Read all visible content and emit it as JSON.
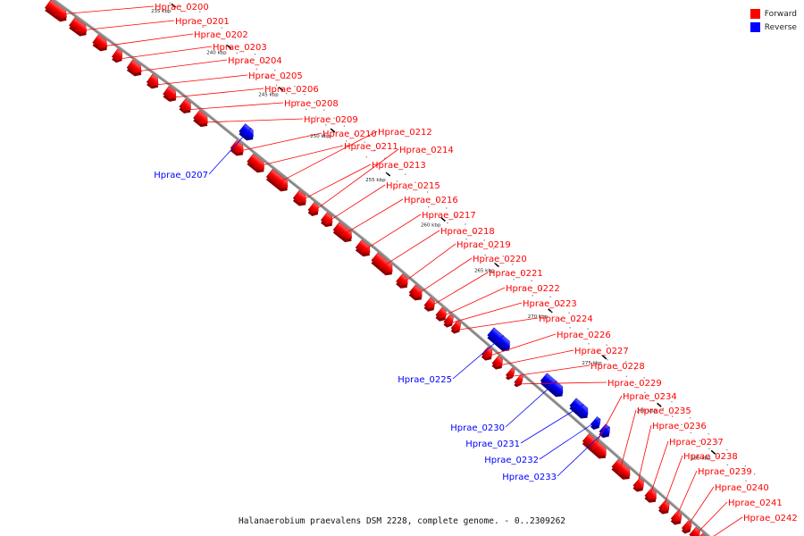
{
  "caption": "Halanaerobium praevalens DSM 2228, complete genome. - 0..2309262",
  "legend": [
    {
      "label": "Forward",
      "color": "#ff0000"
    },
    {
      "label": "Reverse",
      "color": "#0000ff"
    }
  ],
  "colors": {
    "forward": "#ff0000",
    "reverse": "#0000ff",
    "backbone": "#888888"
  },
  "ticks": [
    "230 kbp",
    "235 kbp",
    "240 kbp",
    "245 kbp",
    "250 kbp",
    "255 kbp",
    "260 kbp",
    "265 kbp",
    "270 kbp",
    "275 kbp",
    "280 kbp",
    "285 kbp"
  ],
  "genes": [
    {
      "id": "Hprae_0200",
      "strand": "forward"
    },
    {
      "id": "Hprae_0201",
      "strand": "forward"
    },
    {
      "id": "Hprae_0202",
      "strand": "forward"
    },
    {
      "id": "Hprae_0203",
      "strand": "forward"
    },
    {
      "id": "Hprae_0204",
      "strand": "forward"
    },
    {
      "id": "Hprae_0205",
      "strand": "forward"
    },
    {
      "id": "Hprae_0206",
      "strand": "forward"
    },
    {
      "id": "Hprae_0207",
      "strand": "reverse"
    },
    {
      "id": "Hprae_0208",
      "strand": "forward"
    },
    {
      "id": "Hprae_0209",
      "strand": "forward"
    },
    {
      "id": "Hprae_0210",
      "strand": "forward"
    },
    {
      "id": "Hprae_0211",
      "strand": "forward"
    },
    {
      "id": "Hprae_0212",
      "strand": "forward"
    },
    {
      "id": "Hprae_0213",
      "strand": "forward"
    },
    {
      "id": "Hprae_0214",
      "strand": "forward"
    },
    {
      "id": "Hprae_0215",
      "strand": "forward"
    },
    {
      "id": "Hprae_0216",
      "strand": "forward"
    },
    {
      "id": "Hprae_0217",
      "strand": "forward"
    },
    {
      "id": "Hprae_0218",
      "strand": "forward"
    },
    {
      "id": "Hprae_0219",
      "strand": "forward"
    },
    {
      "id": "Hprae_0220",
      "strand": "forward"
    },
    {
      "id": "Hprae_0221",
      "strand": "forward"
    },
    {
      "id": "Hprae_0222",
      "strand": "forward"
    },
    {
      "id": "Hprae_0223",
      "strand": "forward"
    },
    {
      "id": "Hprae_0224",
      "strand": "forward"
    },
    {
      "id": "Hprae_0225",
      "strand": "reverse"
    },
    {
      "id": "Hprae_0226",
      "strand": "forward"
    },
    {
      "id": "Hprae_0227",
      "strand": "forward"
    },
    {
      "id": "Hprae_0228",
      "strand": "forward"
    },
    {
      "id": "Hprae_0229",
      "strand": "forward"
    },
    {
      "id": "Hprae_0230",
      "strand": "reverse"
    },
    {
      "id": "Hprae_0231",
      "strand": "reverse"
    },
    {
      "id": "Hprae_0232",
      "strand": "reverse"
    },
    {
      "id": "Hprae_0233",
      "strand": "reverse"
    },
    {
      "id": "Hprae_0234",
      "strand": "forward"
    },
    {
      "id": "Hprae_0235",
      "strand": "forward"
    },
    {
      "id": "Hprae_0236",
      "strand": "forward"
    },
    {
      "id": "Hprae_0237",
      "strand": "forward"
    },
    {
      "id": "Hprae_0238",
      "strand": "forward"
    },
    {
      "id": "Hprae_0239",
      "strand": "forward"
    },
    {
      "id": "Hprae_0240",
      "strand": "forward"
    },
    {
      "id": "Hprae_0241",
      "strand": "forward"
    },
    {
      "id": "Hprae_0242",
      "strand": "forward"
    }
  ]
}
